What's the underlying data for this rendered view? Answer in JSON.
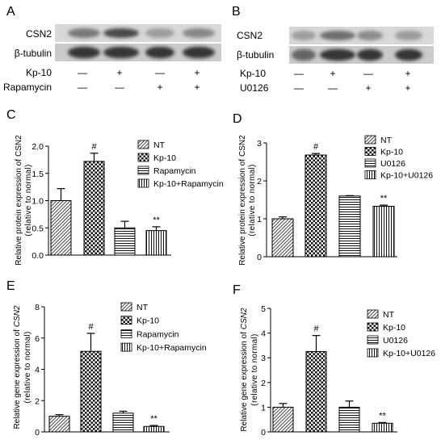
{
  "colors": {
    "ink": "#000000"
  },
  "blots": [
    {
      "panel": "A",
      "rows": [
        {
          "label": "CSN2",
          "band_intensity": [
            0.5,
            0.75,
            0.3,
            0.42
          ]
        },
        {
          "label": "β-tubulin",
          "band_intensity": [
            0.85,
            0.85,
            0.85,
            0.85
          ]
        }
      ],
      "conditions": [
        {
          "label": "Kp-10",
          "signs": [
            "—",
            "+",
            "—",
            "+"
          ]
        },
        {
          "label": "Rapamycin",
          "signs": [
            "—",
            "—",
            "+",
            "+"
          ]
        }
      ]
    },
    {
      "panel": "B",
      "rows": [
        {
          "label": "CSN2",
          "band_intensity": [
            0.3,
            0.55,
            0.4,
            0.32
          ]
        },
        {
          "label": "β-tubulin",
          "band_intensity": [
            0.6,
            0.85,
            0.85,
            0.85
          ]
        }
      ],
      "conditions": [
        {
          "label": "Kp-10",
          "signs": [
            "—",
            "+",
            "—",
            "+"
          ]
        },
        {
          "label": "U0126",
          "signs": [
            "—",
            "—",
            "+",
            "+"
          ]
        }
      ]
    }
  ],
  "chart_data": [
    {
      "panel": "C",
      "type": "bar",
      "categories": [
        "NT",
        "Kp-10",
        "Rapamycin",
        "Kp-10+Rapamycin"
      ],
      "values": [
        1.0,
        1.72,
        0.5,
        0.45
      ],
      "errors": [
        0.22,
        0.15,
        0.12,
        0.07
      ],
      "annotations": [
        "",
        "#",
        "",
        "**"
      ],
      "xlabel": "",
      "ylabel": "Relative protein expression of",
      "ylabel_gene": "CSN2",
      "ylabel_gene_italic": false,
      "ylabel_sub": "(relative to normal)",
      "ylim": [
        0,
        2.0
      ],
      "yticks": [
        "0.0",
        "0.5",
        "1.0",
        "1.5",
        "2.0"
      ],
      "grid": false,
      "legend": "right",
      "bar_patterns": [
        "diagonal",
        "checker",
        "horizontal",
        "vertical"
      ]
    },
    {
      "panel": "D",
      "type": "bar",
      "categories": [
        "NT",
        "Kp-10",
        "U0126",
        "Kp-10+U0126"
      ],
      "values": [
        1.0,
        2.68,
        1.6,
        1.33
      ],
      "errors": [
        0.05,
        0.04,
        0.01,
        0.03
      ],
      "annotations": [
        "",
        "#",
        "",
        "**"
      ],
      "xlabel": "",
      "ylabel": "Relative protein expression of",
      "ylabel_gene": "CSN2",
      "ylabel_gene_italic": false,
      "ylabel_sub": "(relative to normal)",
      "ylim": [
        0,
        3
      ],
      "yticks": [
        "0",
        "1",
        "2",
        "3"
      ],
      "grid": false,
      "legend": "top-right",
      "bar_patterns": [
        "diagonal",
        "checker",
        "horizontal",
        "vertical"
      ]
    },
    {
      "panel": "E",
      "type": "bar",
      "categories": [
        "NT",
        "Kp-10",
        "Rapamycin",
        "Kp-10+Rapamycin"
      ],
      "values": [
        1.0,
        5.15,
        1.2,
        0.35
      ],
      "errors": [
        0.1,
        1.15,
        0.12,
        0.06
      ],
      "annotations": [
        "",
        "#",
        "",
        "**"
      ],
      "xlabel": "",
      "ylabel": "Relative gene expression of",
      "ylabel_gene": "CSN2",
      "ylabel_gene_italic": true,
      "ylabel_sub": "(relative to normal)",
      "ylim": [
        0,
        8
      ],
      "yticks": [
        "0",
        "2",
        "4",
        "6",
        "8"
      ],
      "grid": false,
      "legend": "right",
      "bar_patterns": [
        "diagonal",
        "checker",
        "horizontal",
        "vertical"
      ]
    },
    {
      "panel": "F",
      "type": "bar",
      "categories": [
        "NT",
        "Kp-10",
        "U0126",
        "Kp-10+U0126"
      ],
      "values": [
        1.0,
        3.25,
        1.0,
        0.35
      ],
      "errors": [
        0.15,
        0.65,
        0.25,
        0.03
      ],
      "annotations": [
        "",
        "#",
        "",
        "**"
      ],
      "xlabel": "",
      "ylabel": "Relative gene expression of",
      "ylabel_gene": "CSN2",
      "ylabel_gene_italic": true,
      "ylabel_sub": "(relative to normal)",
      "ylim": [
        0,
        5
      ],
      "yticks": [
        "0",
        "1",
        "2",
        "3",
        "4",
        "5"
      ],
      "grid": false,
      "legend": "top-right",
      "bar_patterns": [
        "diagonal",
        "checker",
        "horizontal",
        "vertical"
      ]
    }
  ]
}
